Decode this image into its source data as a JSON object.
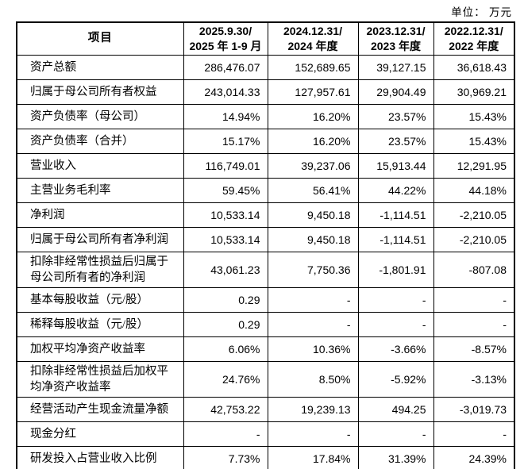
{
  "unit_label": "单位： 万元",
  "table": {
    "header": {
      "item_col": "项目",
      "periods": [
        {
          "line1": "2025.9.30/",
          "line2": "2025 年 1-9 月"
        },
        {
          "line1": "2024.12.31/",
          "line2": "2024 年度"
        },
        {
          "line1": "2023.12.31/",
          "line2": "2023 年度"
        },
        {
          "line1": "2022.12.31/",
          "line2": "2022 年度"
        }
      ]
    },
    "rows": [
      {
        "label": "资产总额",
        "values": [
          "286,476.07",
          "152,689.65",
          "39,127.15",
          "36,618.43"
        ]
      },
      {
        "label": "归属于母公司所有者权益",
        "values": [
          "243,014.33",
          "127,957.61",
          "29,904.49",
          "30,969.21"
        ]
      },
      {
        "label": "资产负债率（母公司）",
        "values": [
          "14.94%",
          "16.20%",
          "23.57%",
          "15.43%"
        ]
      },
      {
        "label": "资产负债率（合并）",
        "values": [
          "15.17%",
          "16.20%",
          "23.57%",
          "15.43%"
        ]
      },
      {
        "label": "营业收入",
        "values": [
          "116,749.01",
          "39,237.06",
          "15,913.44",
          "12,291.95"
        ]
      },
      {
        "label": "主营业务毛利率",
        "values": [
          "59.45%",
          "56.41%",
          "44.22%",
          "44.18%"
        ]
      },
      {
        "label": "净利润",
        "values": [
          "10,533.14",
          "9,450.18",
          "-1,114.51",
          "-2,210.05"
        ]
      },
      {
        "label": "归属于母公司所有者净利润",
        "values": [
          "10,533.14",
          "9,450.18",
          "-1,114.51",
          "-2,210.05"
        ]
      },
      {
        "label": "扣除非经常性损益后归属于母公司所有者的净利润",
        "values": [
          "43,061.23",
          "7,750.36",
          "-1,801.91",
          "-807.08"
        ]
      },
      {
        "label": "基本每股收益（元/股）",
        "values": [
          "0.29",
          "-",
          "-",
          "-"
        ]
      },
      {
        "label": "稀释每股收益（元/股）",
        "values": [
          "0.29",
          "-",
          "-",
          "-"
        ]
      },
      {
        "label": "加权平均净资产收益率",
        "values": [
          "6.06%",
          "10.36%",
          "-3.66%",
          "-8.57%"
        ]
      },
      {
        "label": "扣除非经常性损益后加权平均净资产收益率",
        "values": [
          "24.76%",
          "8.50%",
          "-5.92%",
          "-3.13%"
        ]
      },
      {
        "label": "经营活动产生现金流量净额",
        "values": [
          "42,753.22",
          "19,239.13",
          "494.25",
          "-3,019.73"
        ]
      },
      {
        "label": "现金分红",
        "values": [
          "-",
          "-",
          "-",
          "-"
        ]
      },
      {
        "label": "研发投入占营业收入比例",
        "values": [
          "7.73%",
          "17.84%",
          "31.39%",
          "24.39%"
        ]
      }
    ]
  }
}
